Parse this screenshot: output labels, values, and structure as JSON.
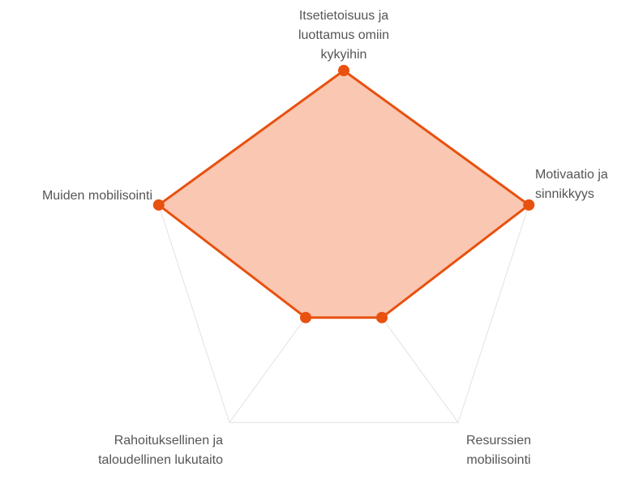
{
  "chart_data": {
    "type": "radar",
    "categories": [
      "Itsetietoisuus ja luottamus omiin kykyihin",
      "Motivaatio ja sinnikkyys",
      "Resurssien mobilisointi",
      "Rahoituksellinen ja taloudellinen lukutaito",
      "Muiden mobilisointi"
    ],
    "values": [
      3,
      3,
      1,
      1,
      3
    ],
    "rlim": [
      0,
      3
    ],
    "color": "#e8510f",
    "fill": "#f9c4ae",
    "grid": true
  }
}
